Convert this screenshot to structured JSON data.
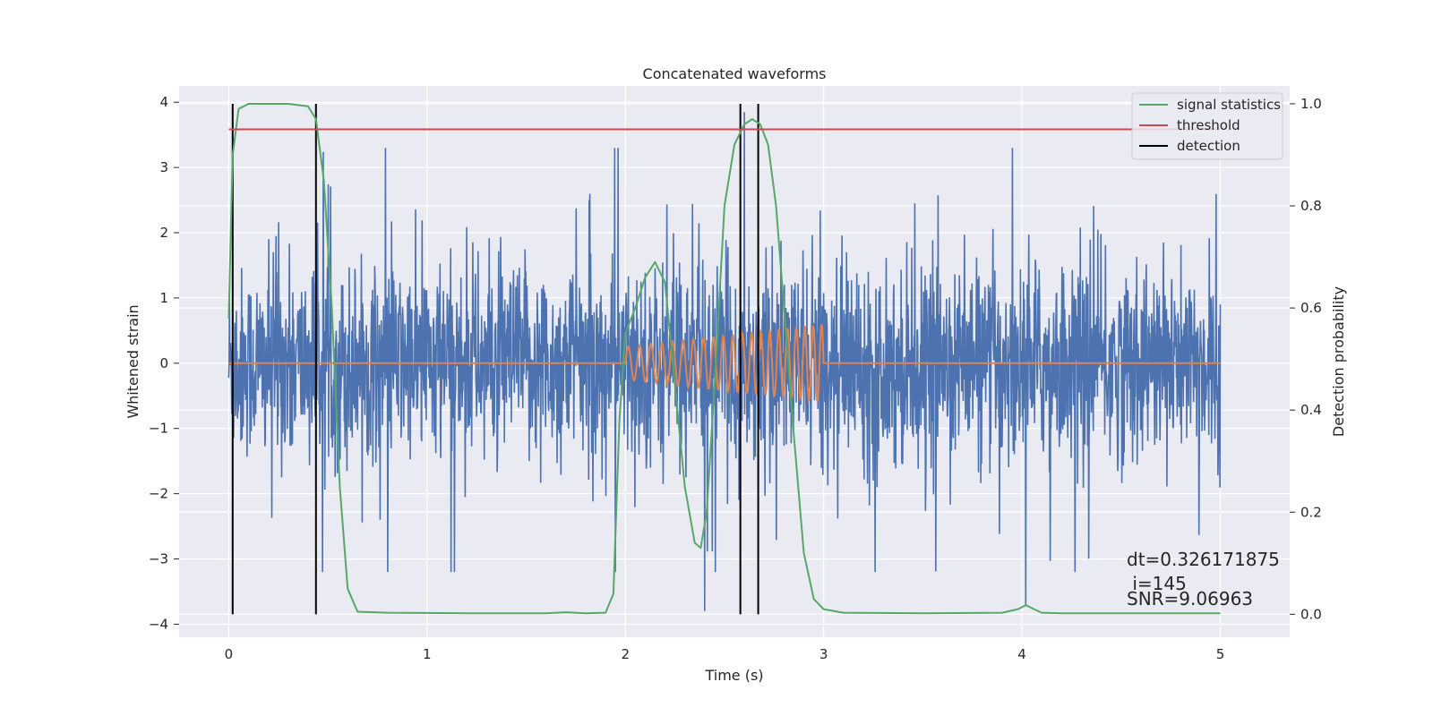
{
  "chart_data": {
    "type": "line",
    "title": "Concatenated waveforms",
    "xlabel": "Time (s)",
    "ylabel_left": "Whitened strain",
    "ylabel_right": "Detection probability",
    "xlim": [
      -0.25,
      5.35
    ],
    "ylim_left": [
      -4.2,
      4.25
    ],
    "ylim_right": [
      -0.045,
      1.035
    ],
    "grid": true,
    "legend_position": "top-right",
    "x_ticks": [
      0,
      1,
      2,
      3,
      4,
      5
    ],
    "x_tick_labels": [
      "0",
      "1",
      "2",
      "3",
      "4",
      "5"
    ],
    "y_left_ticks": [
      4,
      3,
      2,
      1,
      0,
      -1,
      -2,
      -3,
      -4
    ],
    "y_left_tick_labels": [
      "4",
      "3",
      "2",
      "1",
      "0",
      "−1",
      "−2",
      "−3",
      "−4"
    ],
    "y_right_ticks": [
      1.0,
      0.8,
      0.6,
      0.4,
      0.2,
      0.0
    ],
    "y_right_tick_labels": [
      "1.0",
      "0.8",
      "0.6",
      "0.4",
      "0.2",
      "0.0"
    ],
    "series": [
      {
        "name": "signal statistics",
        "axis": "right",
        "color": "#55a868",
        "x": [
          0.0,
          0.02,
          0.05,
          0.1,
          0.2,
          0.3,
          0.4,
          0.44,
          0.48,
          0.52,
          0.56,
          0.6,
          0.65,
          0.8,
          1.2,
          1.6,
          1.7,
          1.8,
          1.9,
          1.94,
          1.97,
          2.0,
          2.05,
          2.1,
          2.15,
          2.2,
          2.25,
          2.3,
          2.35,
          2.38,
          2.41,
          2.45,
          2.5,
          2.55,
          2.6,
          2.64,
          2.68,
          2.72,
          2.76,
          2.8,
          2.85,
          2.9,
          2.95,
          3.0,
          3.1,
          3.5,
          3.9,
          3.98,
          4.02,
          4.06,
          4.1,
          4.2,
          5.0
        ],
        "y": [
          0.58,
          0.9,
          0.99,
          1.0,
          1.0,
          1.0,
          0.995,
          0.97,
          0.85,
          0.6,
          0.25,
          0.05,
          0.005,
          0.003,
          0.002,
          0.002,
          0.004,
          0.002,
          0.003,
          0.04,
          0.38,
          0.55,
          0.6,
          0.66,
          0.69,
          0.65,
          0.45,
          0.25,
          0.14,
          0.13,
          0.2,
          0.45,
          0.8,
          0.92,
          0.96,
          0.97,
          0.96,
          0.92,
          0.8,
          0.6,
          0.35,
          0.12,
          0.03,
          0.01,
          0.003,
          0.002,
          0.003,
          0.01,
          0.018,
          0.01,
          0.003,
          0.002,
          0.002
        ]
      },
      {
        "name": "threshold",
        "axis": "right",
        "color": "#c44e52",
        "x": [
          0.0,
          5.0
        ],
        "y": [
          0.95,
          0.95
        ]
      }
    ],
    "noise_series": {
      "axis": "left",
      "color": "#4c72b0",
      "x_range": [
        0.0,
        5.0
      ],
      "band": [
        -0.75,
        0.8
      ],
      "spike_extremes": [
        3.85,
        -3.8
      ]
    },
    "injected_signal": {
      "axis": "left",
      "color": "#dd8452",
      "x_range": [
        0.0,
        5.0
      ],
      "signal_start": 2.0,
      "signal_end": 3.0,
      "amplitude_start": 0.25,
      "amplitude_end": 0.6,
      "frequency_start": 17,
      "frequency_end": 24
    },
    "detections": {
      "name": "detection",
      "color": "#000000",
      "x": [
        0.02,
        0.44,
        2.58,
        2.67
      ],
      "y_range_right": [
        0.0,
        1.0
      ]
    },
    "annotation": {
      "line1": "dt=0.326171875",
      "line2": " i=145",
      "line3": "SNR=9.06963"
    }
  }
}
